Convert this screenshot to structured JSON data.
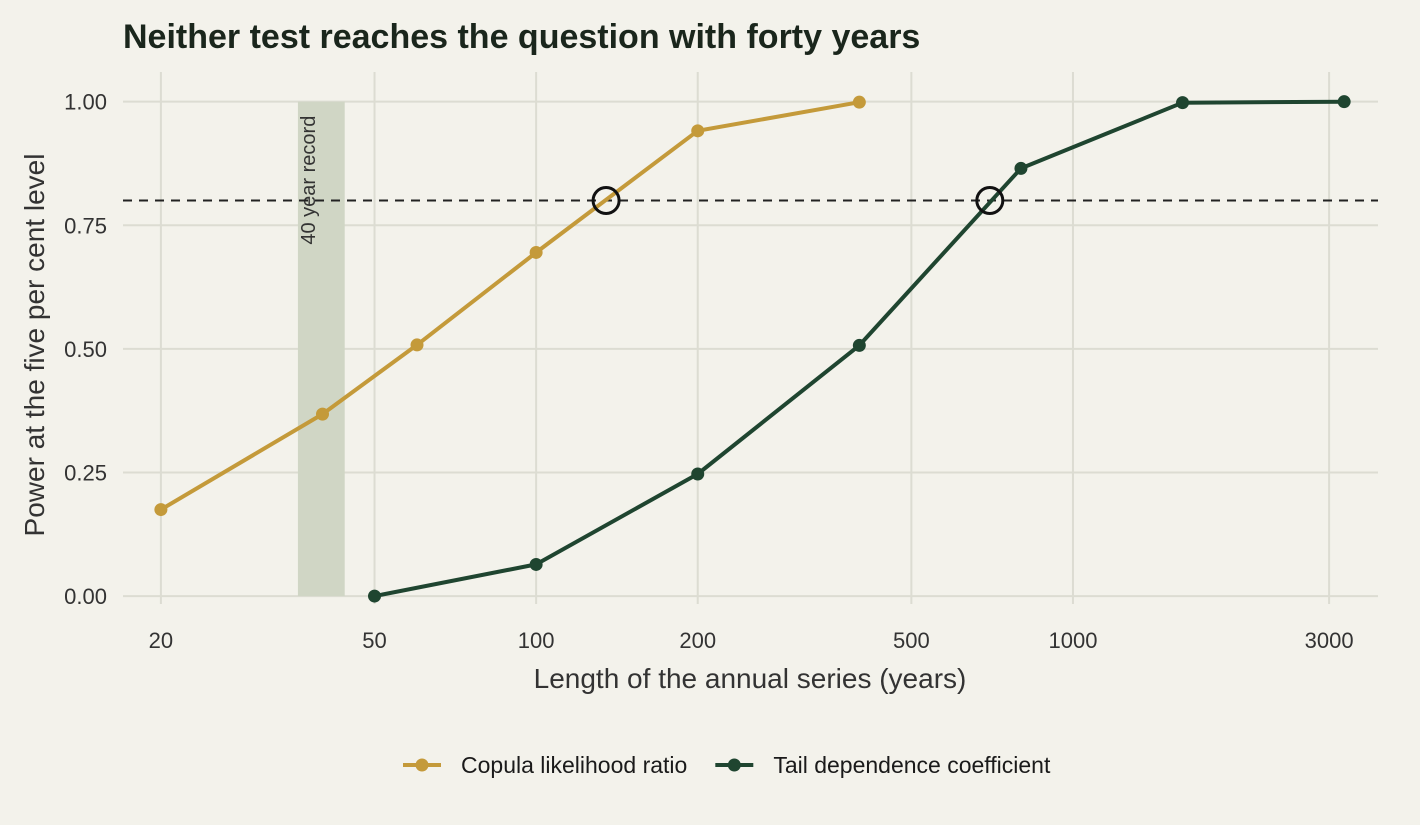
{
  "chart_data": {
    "type": "line",
    "title": "Neither test reaches the question with forty years",
    "xlabel": "Length of the annual series (years)",
    "ylabel": "Power at the five per cent level",
    "x_scale": "log",
    "xlim": [
      17,
      3700
    ],
    "ylim": [
      -0.016,
      1.06
    ],
    "x_ticks": [
      20,
      50,
      100,
      200,
      500,
      1000,
      3000
    ],
    "x_tick_labels": [
      "20",
      "50",
      "100",
      "200",
      "500",
      "1000",
      "3000"
    ],
    "y_ticks": [
      0,
      0.25,
      0.5,
      0.75,
      1
    ],
    "y_tick_labels": [
      "0.00",
      "0.25",
      "0.50",
      "0.75",
      "1.00"
    ],
    "grid": true,
    "legend_position": "bottom",
    "reference_line": {
      "y": 0.8,
      "style": "dashed"
    },
    "band": {
      "x_range": [
        36,
        44
      ],
      "label": "40 year record",
      "color": "#d0d6c5"
    },
    "crossings": [
      {
        "series": "Copula likelihood ratio",
        "x": 135,
        "y": 0.8
      },
      {
        "series": "Tail dependence coefficient",
        "x": 700,
        "y": 0.8
      }
    ],
    "series": [
      {
        "name": "Copula likelihood ratio",
        "color": "#c49a3a",
        "x": [
          20,
          40,
          60,
          100,
          200,
          400
        ],
        "y": [
          0.175,
          0.368,
          0.508,
          0.695,
          0.941,
          0.999
        ]
      },
      {
        "name": "Tail dependence coefficient",
        "color": "#1f4530",
        "x": [
          50,
          100,
          200,
          400,
          800,
          1600,
          3200
        ],
        "y": [
          0.0,
          0.064,
          0.247,
          0.507,
          0.865,
          0.998,
          1.0
        ]
      }
    ]
  }
}
